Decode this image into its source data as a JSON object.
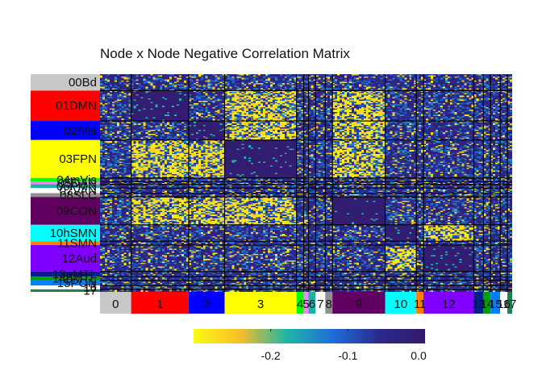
{
  "chart_data": {
    "type": "heatmap",
    "title": "Node x Node Negative Correlation Matrix",
    "networks": [
      {
        "row_label": "00Bd",
        "col_label": "0",
        "color": "#c8c8c8",
        "nodes": 13
      },
      {
        "row_label": "01DMN",
        "col_label": "1",
        "color": "#ff0000",
        "nodes": 24
      },
      {
        "row_label": "02lVis",
        "col_label": "2",
        "color": "#0000ff",
        "nodes": 15
      },
      {
        "row_label": "03FPN",
        "col_label": "3",
        "color": "#ffff00",
        "nodes": 30
      },
      {
        "row_label": "04mVis",
        "col_label": "4",
        "color": "#00ff00",
        "nodes": 3
      },
      {
        "row_label": "05DAN",
        "col_label": "5",
        "color": "#ff80ff",
        "nodes": 2
      },
      {
        "row_label": "06PMN",
        "col_label": "6",
        "color": "#20b0a8",
        "nodes": 3
      },
      {
        "row_label": "07VAN",
        "col_label": "7",
        "color": "#ffffff",
        "nodes": 4
      },
      {
        "row_label": "08SLC",
        "col_label": "8",
        "color": "#909090",
        "nodes": 3
      },
      {
        "row_label": "09CON",
        "col_label": "9",
        "color": "#600060",
        "nodes": 22
      },
      {
        "row_label": "10hSMN",
        "col_label": "10",
        "color": "#00ffff",
        "nodes": 13
      },
      {
        "row_label": "11SMN",
        "col_label": "11",
        "color": "#ff8000",
        "nodes": 3
      },
      {
        "row_label": "12Aud",
        "col_label": "12",
        "color": "#8000ff",
        "nodes": 21
      },
      {
        "row_label": "13aMTL",
        "col_label": "13",
        "color": "#00208a",
        "nodes": 4
      },
      {
        "row_label": "14pMTL",
        "col_label": "14",
        "color": "#00a000",
        "nodes": 3
      },
      {
        "row_label": "15PON",
        "col_label": "15",
        "color": "#0080ff",
        "nodes": 4
      },
      {
        "row_label": "16",
        "col_label": "16",
        "color": "#ffffff",
        "nodes": 3
      },
      {
        "row_label": "17",
        "col_label": "17",
        "color": "#208050",
        "nodes": 2
      }
    ],
    "colorbar": {
      "range": [
        -0.3,
        0.0
      ],
      "ticks": [
        -0.2,
        -0.1,
        0.0
      ],
      "tick_labels": [
        "-0.2",
        "-0.1",
        "0.0"
      ],
      "colormap": [
        "#fafa14",
        "#f9be27",
        "#21b6a7",
        "#1f6ed8",
        "#2a2a8c",
        "#35196b"
      ]
    },
    "block_mean_correlation": {
      "dark_diagonal_blocks": [
        1,
        2,
        3,
        9,
        10,
        12
      ],
      "bright_off_diagonal_pairs": [
        [
          1,
          3
        ],
        [
          1,
          9
        ],
        [
          2,
          3
        ],
        [
          2,
          9
        ],
        [
          3,
          9
        ],
        [
          10,
          12
        ]
      ]
    }
  }
}
